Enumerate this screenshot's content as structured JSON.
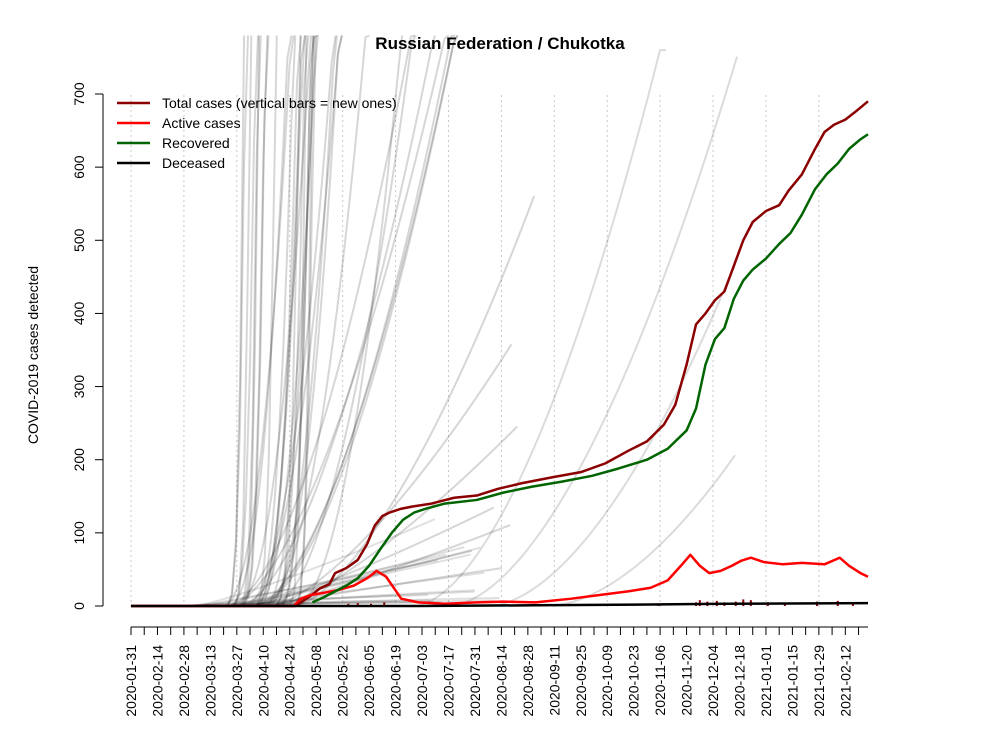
{
  "chart_data": {
    "type": "line",
    "title": "Russian Federation / Chukotka",
    "ylabel": "COVID-2019 cases detected",
    "xlabel": "",
    "ylim": [
      0,
      700
    ],
    "y_ticks": [
      0,
      100,
      200,
      300,
      400,
      500,
      600,
      700
    ],
    "x_range": [
      "2020-01-31",
      "2021-02-24"
    ],
    "x_tick_labels": [
      "2020-01-31",
      "2020-02-14",
      "2020-02-28",
      "2020-03-13",
      "2020-03-27",
      "2020-04-10",
      "2020-04-24",
      "2020-05-08",
      "2020-05-22",
      "2020-06-05",
      "2020-06-19",
      "2020-07-03",
      "2020-07-17",
      "2020-07-31",
      "2020-08-14",
      "2020-08-28",
      "2020-09-11",
      "2020-09-25",
      "2020-10-09",
      "2020-10-23",
      "2020-11-06",
      "2020-11-20",
      "2020-12-04",
      "2020-12-18",
      "2021-01-01",
      "2021-01-15",
      "2021-01-29",
      "2021-02-12"
    ],
    "grid": "vertical dotted lines at labelled dates",
    "legend_position": "top-left",
    "legend": [
      {
        "label": "Total cases (vertical bars = new ones)",
        "color": "#8b0000"
      },
      {
        "label": "Active cases",
        "color": "#ff0000"
      },
      {
        "label": "Recovered",
        "color": "#006400"
      },
      {
        "label": "Deceased",
        "color": "#000000"
      }
    ],
    "series": [
      {
        "name": "Total cases (vertical bars = new ones)",
        "color": "#8b0000",
        "points": [
          [
            "2020-01-31",
            0
          ],
          [
            "2020-04-27",
            0
          ],
          [
            "2020-05-04",
            12
          ],
          [
            "2020-05-10",
            24
          ],
          [
            "2020-05-15",
            30
          ],
          [
            "2020-05-18",
            45
          ],
          [
            "2020-05-24",
            52
          ],
          [
            "2020-05-30",
            63
          ],
          [
            "2020-06-04",
            85
          ],
          [
            "2020-06-08",
            110
          ],
          [
            "2020-06-12",
            123
          ],
          [
            "2020-06-16",
            128
          ],
          [
            "2020-06-22",
            133
          ],
          [
            "2020-06-28",
            136
          ],
          [
            "2020-07-08",
            140
          ],
          [
            "2020-07-20",
            148
          ],
          [
            "2020-08-01",
            151
          ],
          [
            "2020-08-12",
            160
          ],
          [
            "2020-08-25",
            168
          ],
          [
            "2020-09-10",
            176
          ],
          [
            "2020-09-25",
            183
          ],
          [
            "2020-10-08",
            195
          ],
          [
            "2020-10-20",
            212
          ],
          [
            "2020-10-30",
            225
          ],
          [
            "2020-11-08",
            248
          ],
          [
            "2020-11-14",
            275
          ],
          [
            "2020-11-20",
            330
          ],
          [
            "2020-11-25",
            385
          ],
          [
            "2020-11-30",
            400
          ],
          [
            "2020-12-05",
            418
          ],
          [
            "2020-12-10",
            430
          ],
          [
            "2020-12-15",
            465
          ],
          [
            "2020-12-20",
            500
          ],
          [
            "2020-12-25",
            525
          ],
          [
            "2021-01-01",
            540
          ],
          [
            "2021-01-08",
            548
          ],
          [
            "2021-01-13",
            568
          ],
          [
            "2021-01-20",
            590
          ],
          [
            "2021-01-27",
            625
          ],
          [
            "2021-02-01",
            648
          ],
          [
            "2021-02-06",
            658
          ],
          [
            "2021-02-12",
            665
          ],
          [
            "2021-02-17",
            675
          ],
          [
            "2021-02-24",
            690
          ]
        ]
      },
      {
        "name": "Active cases",
        "color": "#ff0000",
        "points": [
          [
            "2020-01-31",
            0
          ],
          [
            "2020-04-26",
            0
          ],
          [
            "2020-04-30",
            10
          ],
          [
            "2020-05-05",
            15
          ],
          [
            "2020-05-12",
            18
          ],
          [
            "2020-05-20",
            22
          ],
          [
            "2020-05-28",
            28
          ],
          [
            "2020-06-04",
            38
          ],
          [
            "2020-06-09",
            48
          ],
          [
            "2020-06-14",
            40
          ],
          [
            "2020-06-18",
            25
          ],
          [
            "2020-06-22",
            10
          ],
          [
            "2020-07-01",
            5
          ],
          [
            "2020-07-15",
            3
          ],
          [
            "2020-08-01",
            5
          ],
          [
            "2020-08-15",
            6
          ],
          [
            "2020-09-01",
            5
          ],
          [
            "2020-09-20",
            10
          ],
          [
            "2020-10-05",
            15
          ],
          [
            "2020-10-20",
            20
          ],
          [
            "2020-11-01",
            25
          ],
          [
            "2020-11-10",
            35
          ],
          [
            "2020-11-17",
            55
          ],
          [
            "2020-11-22",
            70
          ],
          [
            "2020-11-27",
            55
          ],
          [
            "2020-12-02",
            45
          ],
          [
            "2020-12-08",
            48
          ],
          [
            "2020-12-14",
            55
          ],
          [
            "2020-12-19",
            62
          ],
          [
            "2020-12-24",
            66
          ],
          [
            "2020-12-31",
            60
          ],
          [
            "2021-01-10",
            57
          ],
          [
            "2021-01-20",
            59
          ],
          [
            "2021-02-01",
            57
          ],
          [
            "2021-02-09",
            66
          ],
          [
            "2021-02-14",
            55
          ],
          [
            "2021-02-20",
            45
          ],
          [
            "2021-02-24",
            40
          ]
        ]
      },
      {
        "name": "Recovered",
        "color": "#006400",
        "points": [
          [
            "2020-05-06",
            5
          ],
          [
            "2020-05-12",
            12
          ],
          [
            "2020-05-18",
            20
          ],
          [
            "2020-05-24",
            28
          ],
          [
            "2020-05-30",
            38
          ],
          [
            "2020-06-05",
            55
          ],
          [
            "2020-06-11",
            78
          ],
          [
            "2020-06-17",
            100
          ],
          [
            "2020-06-23",
            118
          ],
          [
            "2020-06-29",
            128
          ],
          [
            "2020-07-05",
            133
          ],
          [
            "2020-07-15",
            140
          ],
          [
            "2020-08-01",
            145
          ],
          [
            "2020-08-15",
            155
          ],
          [
            "2020-08-30",
            163
          ],
          [
            "2020-09-15",
            170
          ],
          [
            "2020-10-01",
            178
          ],
          [
            "2020-10-15",
            188
          ],
          [
            "2020-10-30",
            200
          ],
          [
            "2020-11-10",
            215
          ],
          [
            "2020-11-20",
            240
          ],
          [
            "2020-11-25",
            270
          ],
          [
            "2020-11-30",
            330
          ],
          [
            "2020-12-05",
            365
          ],
          [
            "2020-12-10",
            380
          ],
          [
            "2020-12-15",
            420
          ],
          [
            "2020-12-20",
            445
          ],
          [
            "2020-12-25",
            460
          ],
          [
            "2021-01-01",
            475
          ],
          [
            "2021-01-08",
            495
          ],
          [
            "2021-01-14",
            510
          ],
          [
            "2021-01-20",
            535
          ],
          [
            "2021-01-27",
            570
          ],
          [
            "2021-02-02",
            590
          ],
          [
            "2021-02-08",
            605
          ],
          [
            "2021-02-14",
            625
          ],
          [
            "2021-02-20",
            638
          ],
          [
            "2021-02-24",
            645
          ]
        ]
      },
      {
        "name": "Deceased",
        "color": "#000000",
        "points": [
          [
            "2020-01-31",
            0
          ],
          [
            "2020-07-01",
            0
          ],
          [
            "2020-09-01",
            1
          ],
          [
            "2020-11-01",
            2
          ],
          [
            "2020-12-10",
            3
          ],
          [
            "2021-02-24",
            4
          ]
        ]
      }
    ],
    "new_cases_bars": [
      [
        "2020-05-25",
        3
      ],
      [
        "2020-05-30",
        4
      ],
      [
        "2020-06-06",
        3
      ],
      [
        "2020-06-13",
        5
      ],
      [
        "2020-07-15",
        2
      ],
      [
        "2020-08-04",
        2
      ],
      [
        "2020-09-08",
        2
      ],
      [
        "2020-10-15",
        2
      ],
      [
        "2020-11-05",
        3
      ],
      [
        "2020-11-25",
        5
      ],
      [
        "2020-11-27",
        8
      ],
      [
        "2020-12-01",
        6
      ],
      [
        "2020-12-06",
        7
      ],
      [
        "2020-12-10",
        5
      ],
      [
        "2020-12-16",
        6
      ],
      [
        "2020-12-20",
        9
      ],
      [
        "2020-12-24",
        8
      ],
      [
        "2021-01-02",
        5
      ],
      [
        "2021-01-11",
        4
      ],
      [
        "2021-01-28",
        6
      ],
      [
        "2021-02-08",
        7
      ],
      [
        "2021-02-16",
        4
      ]
    ],
    "comparison_series_color": "#000000",
    "comparison_series_note": "faded grey background curves for other regions"
  }
}
